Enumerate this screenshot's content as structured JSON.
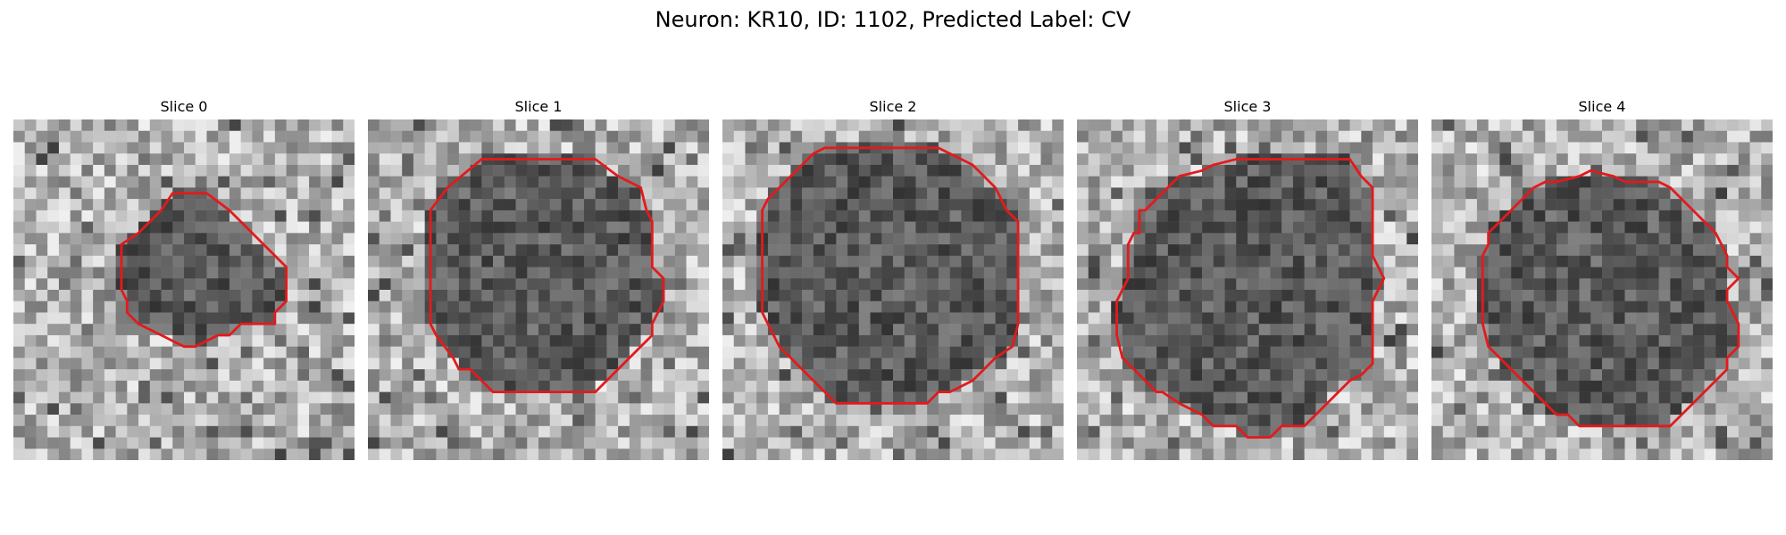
{
  "figure": {
    "title": "Neuron: KR10, ID: 1102, Predicted Label: CV",
    "contour_color": "#e31a1c",
    "colormap": "gray",
    "grid_size": 30
  },
  "slices": [
    {
      "title": "Slice 0",
      "contour": [
        [
          14,
          6.5
        ],
        [
          17,
          6.5
        ],
        [
          19,
          8
        ],
        [
          24,
          13
        ],
        [
          24,
          16
        ],
        [
          23,
          17
        ],
        [
          23,
          18
        ],
        [
          20,
          18
        ],
        [
          19,
          19
        ],
        [
          18,
          19
        ],
        [
          16,
          20
        ],
        [
          15,
          20
        ],
        [
          13,
          19
        ],
        [
          11,
          18
        ],
        [
          10,
          17
        ],
        [
          10,
          16
        ],
        [
          9.5,
          15
        ],
        [
          9.5,
          11
        ],
        [
          11,
          10
        ],
        [
          13,
          8
        ]
      ]
    },
    {
      "title": "Slice 1",
      "contour": [
        [
          10,
          3.5
        ],
        [
          20,
          3.5
        ],
        [
          22,
          5
        ],
        [
          24,
          6
        ],
        [
          24.5,
          8
        ],
        [
          25,
          9
        ],
        [
          25,
          13
        ],
        [
          26,
          14
        ],
        [
          26,
          16
        ],
        [
          25,
          18
        ],
        [
          25,
          19
        ],
        [
          24,
          20
        ],
        [
          23,
          21
        ],
        [
          22,
          22
        ],
        [
          21,
          23
        ],
        [
          20,
          24
        ],
        [
          19,
          24
        ],
        [
          18,
          24
        ],
        [
          17,
          24
        ],
        [
          11,
          24
        ],
        [
          10,
          23
        ],
        [
          9,
          22
        ],
        [
          8,
          22
        ],
        [
          7.5,
          21
        ],
        [
          6,
          19
        ],
        [
          5.5,
          18
        ],
        [
          5.5,
          8
        ],
        [
          7,
          6
        ]
      ]
    },
    {
      "title": "Slice 2",
      "contour": [
        [
          9,
          2.5
        ],
        [
          19,
          2.5
        ],
        [
          20,
          3
        ],
        [
          22,
          4
        ],
        [
          24,
          6
        ],
        [
          25,
          8
        ],
        [
          26,
          9
        ],
        [
          26,
          18
        ],
        [
          25.5,
          20
        ],
        [
          24,
          21
        ],
        [
          22,
          23
        ],
        [
          20,
          24
        ],
        [
          19,
          24
        ],
        [
          18,
          25
        ],
        [
          11,
          25
        ],
        [
          10,
          25
        ],
        [
          9,
          24
        ],
        [
          7,
          22
        ],
        [
          6,
          21
        ],
        [
          5,
          20
        ],
        [
          4,
          18
        ],
        [
          3.5,
          17
        ],
        [
          3.5,
          8
        ],
        [
          4,
          7
        ],
        [
          6,
          5
        ],
        [
          8,
          3
        ]
      ]
    },
    {
      "title": "Slice 3",
      "contour": [
        [
          11,
          4.5
        ],
        [
          12,
          4
        ],
        [
          14,
          3.5
        ],
        [
          24,
          3.5
        ],
        [
          25,
          5
        ],
        [
          26,
          6
        ],
        [
          26,
          12
        ],
        [
          27,
          14
        ],
        [
          26,
          16
        ],
        [
          26,
          21.5
        ],
        [
          25,
          22.5
        ],
        [
          24,
          23
        ],
        [
          22,
          25
        ],
        [
          20,
          27
        ],
        [
          18,
          27
        ],
        [
          17,
          28
        ],
        [
          15,
          28
        ],
        [
          14,
          27
        ],
        [
          12,
          27
        ],
        [
          11,
          26
        ],
        [
          9,
          25
        ],
        [
          7.5,
          24
        ],
        [
          7,
          24
        ],
        [
          6,
          23
        ],
        [
          5,
          22
        ],
        [
          4,
          21
        ],
        [
          3.5,
          19
        ],
        [
          3.5,
          16
        ],
        [
          4,
          15
        ],
        [
          4.5,
          14
        ],
        [
          4.5,
          11
        ],
        [
          5,
          10
        ],
        [
          5.5,
          10
        ],
        [
          5.5,
          8
        ],
        [
          6,
          8
        ],
        [
          7,
          7
        ],
        [
          8,
          6
        ],
        [
          9,
          5
        ]
      ]
    },
    {
      "title": "Slice 4",
      "contour": [
        [
          14,
          4.5
        ],
        [
          16,
          5
        ],
        [
          17,
          5.5
        ],
        [
          20,
          5.5
        ],
        [
          21,
          6
        ],
        [
          23,
          8
        ],
        [
          24,
          9
        ],
        [
          25,
          10
        ],
        [
          26,
          12
        ],
        [
          26,
          13
        ],
        [
          27,
          14
        ],
        [
          26,
          15
        ],
        [
          26,
          16
        ],
        [
          27,
          18
        ],
        [
          27,
          20
        ],
        [
          26,
          21
        ],
        [
          26,
          22
        ],
        [
          25,
          23
        ],
        [
          24,
          24
        ],
        [
          23,
          25
        ],
        [
          22,
          26
        ],
        [
          21,
          27
        ],
        [
          13,
          27
        ],
        [
          12,
          26
        ],
        [
          11,
          26
        ],
        [
          10,
          25
        ],
        [
          9,
          24
        ],
        [
          8,
          23
        ],
        [
          7,
          22
        ],
        [
          6,
          21
        ],
        [
          5,
          20
        ],
        [
          4.5,
          18
        ],
        [
          4.5,
          12
        ],
        [
          5,
          11
        ],
        [
          5,
          10
        ],
        [
          6,
          9
        ],
        [
          7,
          8
        ],
        [
          8,
          7
        ],
        [
          9,
          6
        ],
        [
          10,
          5.5
        ],
        [
          11,
          5.5
        ],
        [
          13,
          5
        ]
      ]
    }
  ]
}
